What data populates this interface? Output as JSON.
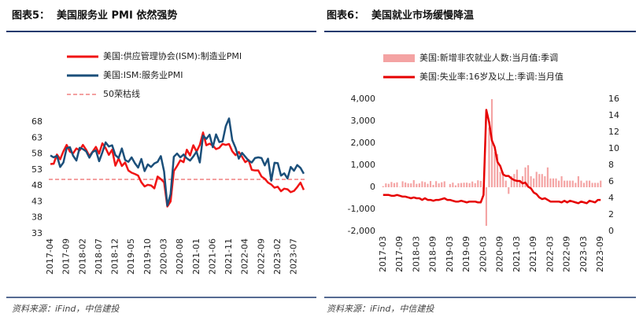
{
  "chart_data": [
    {
      "type": "line",
      "figure_label": "图表5：",
      "title": "美国服务业 PMI 依然强势",
      "source": "资料来源：iFind，中信建投",
      "categories": [
        "2017-04",
        null,
        null,
        null,
        null,
        "2017-09",
        null,
        null,
        null,
        null,
        "2018-02",
        null,
        null,
        null,
        null,
        "2018-07",
        null,
        null,
        null,
        null,
        "2018-12",
        null,
        null,
        null,
        null,
        "2019-05",
        null,
        null,
        null,
        null,
        "2019-10",
        null,
        null,
        null,
        null,
        "2020-03",
        null,
        null,
        null,
        null,
        "2020-08",
        null,
        null,
        null,
        null,
        "2021-01",
        null,
        null,
        null,
        null,
        "2021-06",
        null,
        null,
        null,
        null,
        "2021-11",
        null,
        null,
        null,
        null,
        "2022-04",
        null,
        null,
        null,
        null,
        "2022-09",
        null,
        null,
        null,
        null,
        "2023-02",
        null,
        null,
        null,
        null,
        "2023-07",
        null,
        null,
        null
      ],
      "series": [
        {
          "name": "美国:供应管理协会(ISM):制造业PMI",
          "color": "#f01414",
          "values": [
            54.8,
            54.9,
            57.8,
            56.3,
            58.8,
            60.8,
            58.7,
            58.2,
            59.7,
            59.1,
            60.8,
            59.3,
            57.3,
            58.7,
            60.2,
            58.1,
            61.3,
            59.8,
            57.7,
            59.3,
            54.3,
            56.6,
            54.2,
            55.3,
            52.8,
            52.1,
            51.7,
            51.2,
            49.1,
            47.8,
            48.3,
            48.1,
            47.2,
            50.9,
            50.1,
            49.1,
            41.5,
            43.1,
            52.6,
            54.2,
            56.0,
            55.4,
            59.3,
            57.5,
            60.7,
            58.7,
            60.8,
            64.7,
            60.7,
            61.2,
            60.6,
            59.5,
            59.9,
            61.1,
            60.8,
            61.1,
            58.8,
            57.6,
            58.6,
            57.1,
            55.4,
            56.1,
            53.0,
            52.8,
            52.8,
            50.9,
            50.2,
            49.0,
            48.4,
            47.4,
            47.7,
            46.3,
            47.1,
            46.9,
            46.0,
            46.4,
            47.6,
            49.0,
            46.7
          ]
        },
        {
          "name": "美国:ISM:服务业PMI",
          "color": "#1b4f7a",
          "values": [
            57.5,
            56.9,
            57.4,
            53.9,
            55.3,
            59.8,
            60.1,
            57.4,
            55.9,
            59.9,
            59.5,
            58.8,
            56.8,
            58.6,
            59.1,
            55.7,
            58.5,
            61.6,
            60.3,
            60.7,
            57.6,
            56.7,
            59.7,
            56.1,
            55.5,
            56.9,
            55.1,
            53.7,
            56.4,
            52.6,
            54.7,
            53.9,
            55.0,
            55.5,
            57.3,
            52.5,
            41.8,
            45.4,
            57.1,
            58.1,
            56.9,
            57.8,
            56.6,
            55.9,
            57.2,
            58.7,
            55.3,
            63.7,
            62.7,
            64.0,
            60.1,
            64.1,
            61.7,
            61.9,
            66.7,
            69.1,
            62.3,
            59.9,
            56.5,
            58.3,
            57.1,
            55.9,
            55.3,
            56.7,
            56.9,
            56.7,
            54.4,
            56.5,
            49.6,
            55.2,
            55.1,
            51.2,
            51.9,
            50.3,
            53.9,
            52.7,
            54.5,
            53.6,
            51.8
          ]
        }
      ],
      "reference_line": {
        "name": "50荣枯线",
        "value": 50,
        "color": "#f08080"
      },
      "ylim": [
        33,
        68
      ],
      "yticks": [
        33,
        38,
        43,
        48,
        53,
        58,
        63,
        68
      ],
      "grid": false
    },
    {
      "type": "combo",
      "figure_label": "图表6：",
      "title": "美国就业市场缓慢降温",
      "source": "资料来源：iFind，中信建投",
      "categories": [
        "2017-03",
        null,
        null,
        null,
        null,
        null,
        "2017-09",
        null,
        null,
        null,
        null,
        null,
        "2018-03",
        null,
        null,
        null,
        null,
        null,
        "2018-09",
        null,
        null,
        null,
        null,
        null,
        "2019-03",
        null,
        null,
        null,
        null,
        null,
        "2019-09",
        null,
        null,
        null,
        null,
        null,
        "2020-03",
        null,
        null,
        null,
        null,
        null,
        "2020-09",
        null,
        null,
        null,
        null,
        null,
        "2021-03",
        null,
        null,
        null,
        null,
        null,
        "2021-09",
        null,
        null,
        null,
        null,
        null,
        "2022-03",
        null,
        null,
        null,
        null,
        null,
        "2022-09",
        null,
        null,
        null,
        null,
        null,
        "2023-03",
        null,
        null,
        null,
        null,
        null,
        "2023-09"
      ],
      "series": [
        {
          "name": "美国:新增非农就业人数:当月值:季调",
          "type": "bar",
          "color": "#f4a3a3",
          "values": [
            50,
            175,
            155,
            239,
            190,
            221,
            14,
            271,
            216,
            175,
            176,
            324,
            155,
            175,
            270,
            235,
            157,
            282,
            108,
            277,
            176,
            227,
            269,
            1,
            147,
            210,
            85,
            182,
            194,
            207,
            208,
            185,
            261,
            184,
            315,
            289,
            -100,
            -1750,
            2700,
            4000,
            1600,
            1500,
            700,
            700,
            300,
            -300,
            500,
            600,
            800,
            300,
            500,
            900,
            1000,
            500,
            400,
            700,
            600,
            600,
            500,
            900,
            400,
            400,
            400,
            300,
            500,
            300,
            300,
            300,
            300,
            200,
            500,
            300,
            200,
            300,
            300,
            200,
            200,
            200,
            300
          ]
        },
        {
          "name": "美国:失业率:16岁及以上:季调:当月值",
          "type": "line",
          "axis": "y2",
          "color": "#e60000",
          "values": [
            4.4,
            4.4,
            4.4,
            4.3,
            4.3,
            4.4,
            4.3,
            4.2,
            4.2,
            4.1,
            4.0,
            4.1,
            4.0,
            4.0,
            3.8,
            4.0,
            3.8,
            3.8,
            3.7,
            3.8,
            3.8,
            3.9,
            4.0,
            3.8,
            3.8,
            3.7,
            3.6,
            3.6,
            3.7,
            3.6,
            3.5,
            3.6,
            3.6,
            3.6,
            3.5,
            3.5,
            4.4,
            14.7,
            13.2,
            11.0,
            10.2,
            8.4,
            7.9,
            6.9,
            6.7,
            6.7,
            6.4,
            6.2,
            6.1,
            6.1,
            5.8,
            5.9,
            5.4,
            5.2,
            4.7,
            4.5,
            4.1,
            3.9,
            4.0,
            3.8,
            3.6,
            3.6,
            3.6,
            3.6,
            3.5,
            3.7,
            3.5,
            3.7,
            3.6,
            3.5,
            3.4,
            3.6,
            3.5,
            3.4,
            3.7,
            3.6,
            3.5,
            3.8,
            3.8
          ]
        }
      ],
      "ylim": [
        -2000,
        4000
      ],
      "yticks": [
        {
          "value": -2000,
          "label": "-2,000"
        },
        {
          "value": -1000,
          "label": "-1,000"
        },
        0,
        {
          "value": 1000,
          "label": "1,000"
        },
        {
          "value": 2000,
          "label": "2,000"
        },
        {
          "value": 3000,
          "label": "3,000"
        },
        {
          "value": 4000,
          "label": "4,000"
        }
      ],
      "y2lim": [
        0,
        16
      ],
      "y2ticks": [
        0,
        2,
        4,
        6,
        8,
        10,
        12,
        14,
        16
      ],
      "grid": false
    }
  ]
}
